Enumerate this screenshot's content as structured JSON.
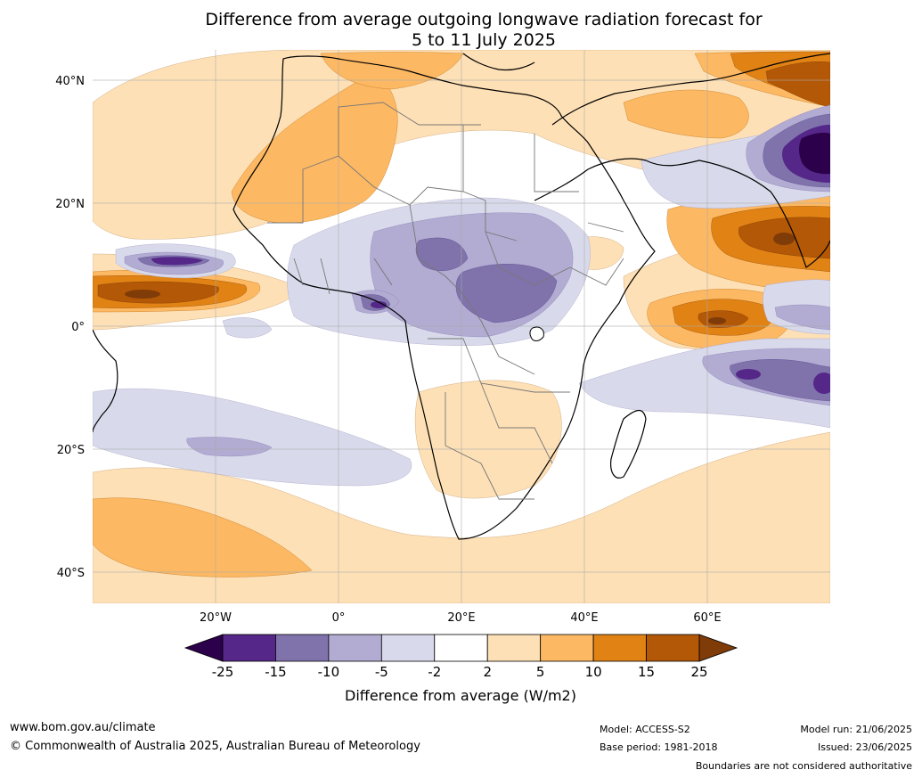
{
  "title_line1": "Difference from average outgoing longwave radiation forecast for",
  "title_line2": "5 to 11 July 2025",
  "lat_labels": [
    "40°N",
    "20°N",
    "0°",
    "20°S",
    "40°S"
  ],
  "lon_labels": [
    "20°W",
    "0°",
    "20°E",
    "40°E",
    "60°E"
  ],
  "colorbar": {
    "ticks": [
      "-25",
      "-15",
      "-10",
      "-5",
      "-2",
      "2",
      "5",
      "10",
      "15",
      "25"
    ],
    "colors": [
      "#2d004b",
      "#542788",
      "#8073ac",
      "#b2abd2",
      "#d8daeb",
      "#ffffff",
      "#fee0b6",
      "#fdb863",
      "#e08214",
      "#b35806",
      "#7f3b08"
    ],
    "label": "Difference from average (W/m2)"
  },
  "footer": {
    "website": "www.bom.gov.au/climate",
    "copyright": "© Commonwealth of Australia 2025, Australian Bureau of Meteorology",
    "model": "Model: ACCESS-S2",
    "base_period": "Base period: 1981-2018",
    "model_run": "Model run: 21/06/2025",
    "issued": "Issued: 23/06/2025",
    "boundaries_note": "Boundaries are not considered authoritative"
  }
}
